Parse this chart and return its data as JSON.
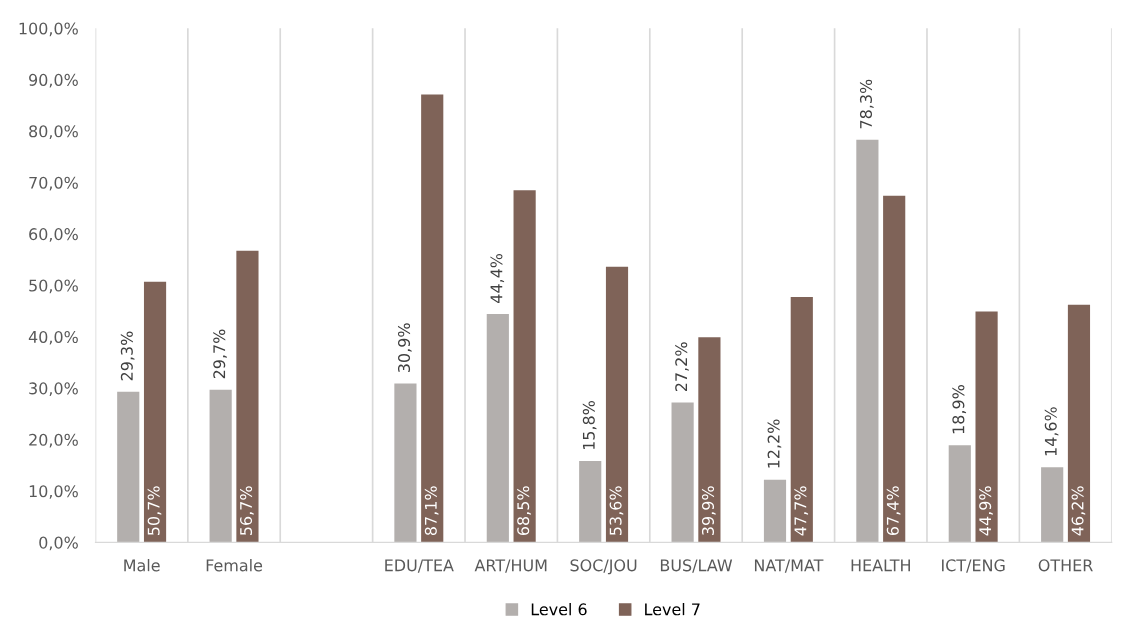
{
  "chart_data": {
    "type": "bar",
    "categories": [
      "Male",
      "Female",
      null,
      "EDU/TEA",
      "ART/HUM",
      "SOC/JOU",
      "BUS/LAW",
      "NAT/MAT",
      "HEALTH",
      "ICT/ENG",
      "OTHER"
    ],
    "series": [
      {
        "name": "Level 6",
        "color": "#b3afad",
        "values": [
          29.3,
          29.7,
          null,
          30.9,
          44.4,
          15.8,
          27.2,
          12.2,
          78.3,
          18.9,
          14.6
        ],
        "value_labels": [
          "29,3%",
          "29,7%",
          null,
          "30,9%",
          "44,4%",
          "15,8%",
          "27,2%",
          "12,2%",
          "78,3%",
          "18,9%",
          "14,6%"
        ]
      },
      {
        "name": "Level 7",
        "color": "#7f6358",
        "values": [
          50.7,
          56.7,
          null,
          87.1,
          68.5,
          53.6,
          39.9,
          47.7,
          67.4,
          44.9,
          46.2
        ],
        "value_labels": [
          "50,7%",
          "56,7%",
          null,
          "87,1%",
          "68,5%",
          "53,6%",
          "39,9%",
          "47,7%",
          "67,4%",
          "44,9%",
          "46,2%"
        ]
      }
    ],
    "ylim": [
      0,
      100
    ],
    "yticks": [
      {
        "value": 0,
        "label": "0,0%"
      },
      {
        "value": 10,
        "label": "10,0%"
      },
      {
        "value": 20,
        "label": "20,0%"
      },
      {
        "value": 30,
        "label": "30,0%"
      },
      {
        "value": 40,
        "label": "40,0%"
      },
      {
        "value": 50,
        "label": "50,0%"
      },
      {
        "value": 60,
        "label": "60,0%"
      },
      {
        "value": 70,
        "label": "70,0%"
      },
      {
        "value": 80,
        "label": "80,0%"
      },
      {
        "value": 90,
        "label": "90,0%"
      },
      {
        "value": 100,
        "label": "100,0%"
      }
    ],
    "grid": "x",
    "legend": "bottom"
  }
}
